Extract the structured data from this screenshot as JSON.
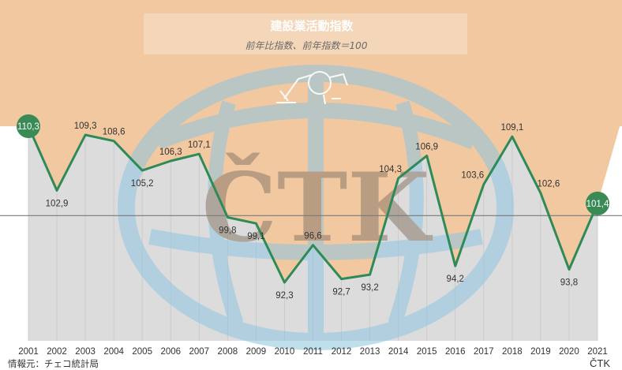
{
  "chart_data": {
    "type": "line",
    "title": "建設業活動指数",
    "subtitle": "前年比指数、前年指数＝100",
    "x": [
      "2001",
      "2002",
      "2003",
      "2004",
      "2005",
      "2006",
      "2007",
      "2008",
      "2009",
      "2010",
      "2011",
      "2012",
      "2013",
      "2014",
      "2015",
      "2016",
      "2017",
      "2018",
      "2019",
      "2020",
      "2021"
    ],
    "values": [
      110.3,
      102.9,
      109.3,
      108.6,
      105.2,
      106.3,
      107.1,
      99.8,
      99.1,
      92.3,
      96.6,
      92.7,
      93.2,
      104.3,
      106.9,
      94.2,
      103.6,
      109.1,
      102.6,
      93.8,
      101.4
    ],
    "labels": [
      "110,3",
      "102,9",
      "109,3",
      "108,6",
      "105,2",
      "106,3",
      "107,1",
      "99,8",
      "99,1",
      "92,3",
      "96,6",
      "92,7",
      "93,2",
      "104,3",
      "106,9",
      "94,2",
      "103,6",
      "109,1",
      "102,6",
      "93,8",
      "101,4"
    ],
    "highlighted": [
      "2001",
      "2021"
    ],
    "reference_value": 100,
    "colors": {
      "line": "#2e8b57",
      "marker": "#3a8a55",
      "area": "#dcdcdc",
      "header": "#f2c8a0",
      "reference": "#7a7a7a",
      "grid": "#c8c8c8",
      "watermark_blue": "#8ec6e0",
      "watermark_text": "#8a7a6a"
    }
  },
  "source": "情報元：チェコ統計局",
  "logo_text": "ČTK",
  "watermark": "ČTK"
}
